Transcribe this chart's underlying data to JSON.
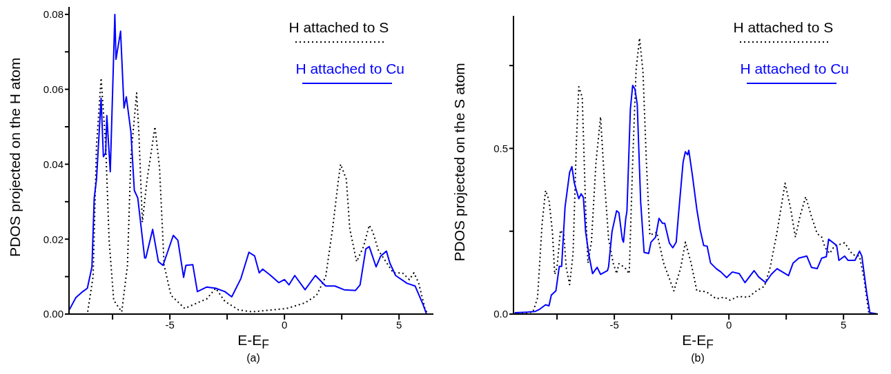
{
  "chart_data": [
    {
      "type": "line",
      "xlabel": "E-E$_{F}$",
      "ylabel": "PDOS projected on the H atom",
      "annotations": [
        "(a)"
      ],
      "legend": "top right",
      "xlim": [
        -9.4,
        6.5
      ],
      "xticks": [
        {
          "value": -7.5,
          "label": null
        },
        -5,
        {
          "value": -2.5,
          "label": null
        },
        0,
        {
          "value": 2.5,
          "label": null
        },
        5
      ],
      "ylim": [
        0,
        0.082
      ],
      "yticks": [
        {
          "value": 0,
          "label": "0.00"
        },
        {
          "value": 0.01,
          "label": null
        },
        0.02,
        {
          "value": 0.03,
          "label": null
        },
        0.04,
        {
          "value": 0.05,
          "label": null
        },
        0.06,
        {
          "value": 0.07,
          "label": null
        },
        0.08
      ],
      "grid": false,
      "series": [
        {
          "name": "H attached to S",
          "color": "#000000",
          "line_style": "dotted",
          "x": [
            -9.4,
            -8.6,
            -8.35,
            -8.2,
            -8.0,
            -7.8,
            -7.65,
            -7.45,
            -7.1,
            -6.85,
            -6.7,
            -6.45,
            -6.35,
            -6.2,
            -6.0,
            -5.65,
            -5.45,
            -5.25,
            -4.95,
            -4.35,
            -3.8,
            -3.4,
            -3.0,
            -2.6,
            -2.0,
            -1.4,
            0.1,
            0.9,
            1.4,
            1.8,
            2.1,
            2.35,
            2.45,
            2.7,
            2.85,
            3.15,
            3.45,
            3.7,
            3.85,
            4.1,
            4.75,
            5.15,
            5.45,
            5.65,
            5.85,
            6.15,
            6.3,
            6.5
          ],
          "values": [
            0,
            0,
            0.01,
            0.045,
            0.063,
            0.045,
            0.0197,
            0.0037,
            0.0006,
            0.013,
            0.042,
            0.059,
            0.048,
            0.0245,
            0.0356,
            0.05,
            0.039,
            0.013,
            0.005,
            0.0015,
            0.003,
            0.004,
            0.0069,
            0.0034,
            0.0011,
            0.0006,
            0.0015,
            0.003,
            0.005,
            0.01,
            0.0228,
            0.0356,
            0.04,
            0.036,
            0.0228,
            0.014,
            0.018,
            0.0237,
            0.022,
            0.017,
            0.011,
            0.011,
            0.0092,
            0.011,
            0.0084,
            0.001,
            0,
            0
          ]
        },
        {
          "name": "H attached to Cu",
          "color": "#0000ff",
          "line_style": "solid",
          "x": [
            -9.4,
            -9.1,
            -8.8,
            -8.6,
            -8.4,
            -8.3,
            -8.2,
            -8.0,
            -7.9,
            -7.8,
            -7.75,
            -7.6,
            -7.4,
            -7.35,
            -7.15,
            -7.0,
            -6.9,
            -6.7,
            -6.55,
            -6.4,
            -6.25,
            -6.1,
            -6.05,
            -5.75,
            -5.5,
            -5.3,
            -4.85,
            -4.65,
            -4.4,
            -4.3,
            -4.0,
            -3.8,
            -3.4,
            -3.0,
            -2.6,
            -2.3,
            -1.9,
            -1.55,
            -1.3,
            -1.1,
            -0.95,
            -0.6,
            -0.25,
            0,
            0.2,
            0.45,
            0.9,
            1.35,
            1.8,
            2.2,
            2.6,
            3.1,
            3.3,
            3.55,
            3.7,
            4.0,
            4.2,
            4.45,
            4.6,
            4.85,
            5.35,
            5.7,
            6.05,
            6.2,
            6.5
          ],
          "values": [
            0.001,
            0.0044,
            0.006,
            0.0069,
            0.0126,
            0.031,
            0.036,
            0.0576,
            0.042,
            0.043,
            0.053,
            0.038,
            0.08,
            0.068,
            0.0755,
            0.055,
            0.058,
            0.0486,
            0.033,
            0.031,
            0.023,
            0.015,
            0.015,
            0.0226,
            0.014,
            0.013,
            0.021,
            0.0197,
            0.0098,
            0.013,
            0.0132,
            0.006,
            0.0072,
            0.0069,
            0.006,
            0.0046,
            0.0095,
            0.0165,
            0.0155,
            0.011,
            0.012,
            0.0103,
            0.0084,
            0.0092,
            0.0078,
            0.0103,
            0.0065,
            0.0103,
            0.0075,
            0.0075,
            0.0065,
            0.0063,
            0.0078,
            0.0174,
            0.018,
            0.0126,
            0.0155,
            0.0168,
            0.0136,
            0.0103,
            0.0082,
            0.0075,
            0.0025,
            0,
            0
          ]
        }
      ]
    },
    {
      "type": "line",
      "xlabel": "E-E$_{F}$",
      "ylabel": "PDOS projected on the S atom",
      "annotations": [
        "(b)"
      ],
      "legend": "top right",
      "xlim": [
        -9.4,
        6.5
      ],
      "xticks": [
        {
          "value": -7.5,
          "label": null
        },
        -5,
        {
          "value": -2.5,
          "label": null
        },
        0,
        {
          "value": 2.5,
          "label": null
        },
        5
      ],
      "ylim": [
        0,
        0.9
      ],
      "yticks": [
        {
          "value": 0,
          "label": "0.0"
        },
        {
          "value": 0.25,
          "label": null
        },
        0.5,
        {
          "value": 0.75,
          "label": null
        }
      ],
      "grid": false,
      "series": [
        {
          "name": "H attached to S",
          "color": "#000000",
          "line_style": "dotted",
          "x": [
            -9.4,
            -8.55,
            -8.35,
            -8.15,
            -8.0,
            -7.85,
            -7.7,
            -7.6,
            -7.5,
            -7.35,
            -7.2,
            -7.1,
            -6.95,
            -6.8,
            -6.65,
            -6.55,
            -6.4,
            -6.25,
            -6.15,
            -6.0,
            -5.8,
            -5.6,
            -5.45,
            -5.25,
            -5.05,
            -4.9,
            -4.8,
            -4.55,
            -4.35,
            -4.2,
            -4.05,
            -3.9,
            -3.75,
            -3.6,
            -3.45,
            -3.15,
            -2.85,
            -2.4,
            -2.1,
            -1.9,
            -1.65,
            -1.4,
            -1.0,
            -0.55,
            -0.2,
            0.05,
            0.4,
            0.85,
            1.2,
            1.55,
            1.8,
            2.1,
            2.45,
            2.7,
            2.9,
            3.1,
            3.35,
            3.6,
            3.85,
            4.05,
            4.2,
            4.4,
            4.6,
            5.05,
            5.4,
            5.7,
            5.9,
            6.1,
            6.3,
            6.5
          ],
          "values": [
            0,
            0.006,
            0.049,
            0.274,
            0.373,
            0.344,
            0.247,
            0.12,
            0.141,
            0.253,
            0.238,
            0.141,
            0.089,
            0.183,
            0.527,
            0.686,
            0.654,
            0.316,
            0.154,
            0.217,
            0.458,
            0.595,
            0.422,
            0.226,
            0.154,
            0.122,
            0.152,
            0.141,
            0.122,
            0.458,
            0.738,
            0.833,
            0.732,
            0.458,
            0.238,
            0.247,
            0.154,
            0.07,
            0.141,
            0.217,
            0.154,
            0.07,
            0.068,
            0.046,
            0.051,
            0.042,
            0.053,
            0.051,
            0.07,
            0.084,
            0.141,
            0.247,
            0.395,
            0.316,
            0.232,
            0.295,
            0.354,
            0.295,
            0.243,
            0.232,
            0.2,
            0.183,
            0.205,
            0.215,
            0.179,
            0.175,
            0.105,
            0.004,
            0,
            0
          ]
        },
        {
          "name": "H attached to Cu",
          "color": "#0000ff",
          "line_style": "solid",
          "x": [
            -9.35,
            -8.75,
            -8.45,
            -8.25,
            -8.0,
            -7.85,
            -7.75,
            -7.55,
            -7.4,
            -7.3,
            -7.15,
            -6.95,
            -6.85,
            -6.75,
            -6.7,
            -6.55,
            -6.45,
            -6.35,
            -6.25,
            -6.1,
            -5.95,
            -5.75,
            -5.6,
            -5.3,
            -5.25,
            -5.1,
            -4.9,
            -4.8,
            -4.65,
            -4.6,
            -4.5,
            -4.45,
            -4.3,
            -4.2,
            -4.1,
            -4.0,
            -3.85,
            -3.7,
            -3.5,
            -3.4,
            -3.2,
            -3.05,
            -2.9,
            -2.8,
            -2.6,
            -2.45,
            -2.3,
            -2.2,
            -2.0,
            -1.9,
            -1.8,
            -1.75,
            -1.6,
            -1.4,
            -1.25,
            -1.1,
            -0.95,
            -0.8,
            -0.55,
            -0.35,
            -0.1,
            0.15,
            0.45,
            0.7,
            1.1,
            1.3,
            1.6,
            1.85,
            2.1,
            2.6,
            2.8,
            3.05,
            3.4,
            3.6,
            3.85,
            4.05,
            4.25,
            4.35,
            4.7,
            4.8,
            5.05,
            5.2,
            5.5,
            5.7,
            5.8,
            6.0,
            6.15,
            6.5
          ],
          "values": [
            0.004,
            0.006,
            0.008,
            0.015,
            0.028,
            0.025,
            0.057,
            0.07,
            0.144,
            0.144,
            0.323,
            0.428,
            0.445,
            0.397,
            0.384,
            0.348,
            0.363,
            0.352,
            0.247,
            0.175,
            0.122,
            0.141,
            0.12,
            0.131,
            0.143,
            0.249,
            0.312,
            0.306,
            0.226,
            0.217,
            0.289,
            0.31,
            0.618,
            0.69,
            0.679,
            0.633,
            0.338,
            0.186,
            0.183,
            0.217,
            0.232,
            0.289,
            0.274,
            0.274,
            0.215,
            0.2,
            0.217,
            0.3,
            0.458,
            0.49,
            0.481,
            0.494,
            0.422,
            0.316,
            0.253,
            0.207,
            0.205,
            0.154,
            0.137,
            0.127,
            0.11,
            0.127,
            0.122,
            0.095,
            0.131,
            0.112,
            0.095,
            0.12,
            0.137,
            0.116,
            0.154,
            0.169,
            0.175,
            0.141,
            0.137,
            0.169,
            0.173,
            0.226,
            0.207,
            0.162,
            0.175,
            0.162,
            0.162,
            0.19,
            0.175,
            0.07,
            0.004,
            0
          ]
        }
      ]
    }
  ]
}
